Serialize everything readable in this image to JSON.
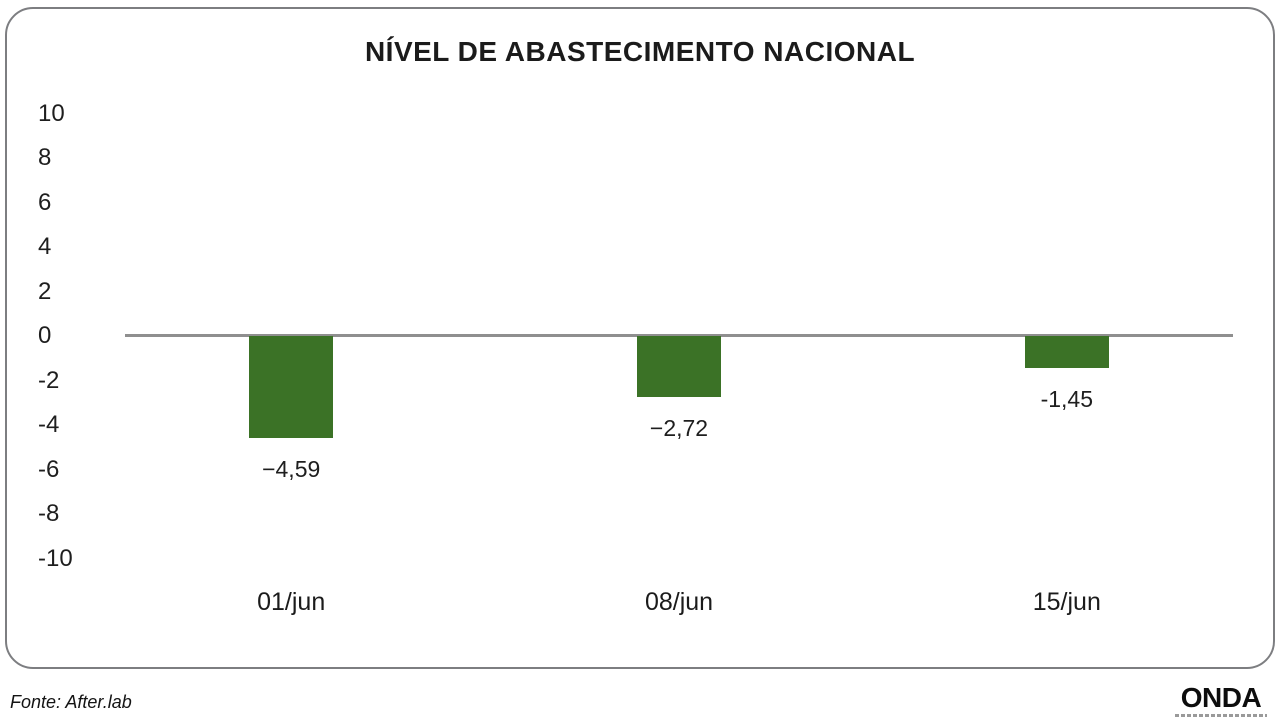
{
  "chart_data": {
    "type": "bar",
    "title": "NÍVEL DE ABASTECIMENTO NACIONAL",
    "categories": [
      "01/jun",
      "08/jun",
      "15/jun"
    ],
    "values": [
      -4.59,
      -2.72,
      -1.45
    ],
    "value_labels": [
      "−4,59",
      "−2,72",
      "-1,45"
    ],
    "y_tick_values": [
      10,
      8,
      6,
      4,
      2,
      0,
      -2,
      -4,
      -6,
      -8,
      -10
    ],
    "y_tick_labels": [
      "10",
      "8",
      "6",
      "4",
      "2",
      "0",
      "-2",
      "-4",
      "-6",
      "-8",
      "-10"
    ],
    "ylim": [
      -10,
      10
    ],
    "xlabel": "",
    "ylabel": "",
    "grid": false,
    "legend": false,
    "bar_color": "#3B7226",
    "axis_line_color": "#8f8f8f"
  },
  "footer": {
    "source": "Fonte: After.lab",
    "logo": "ONDA"
  }
}
